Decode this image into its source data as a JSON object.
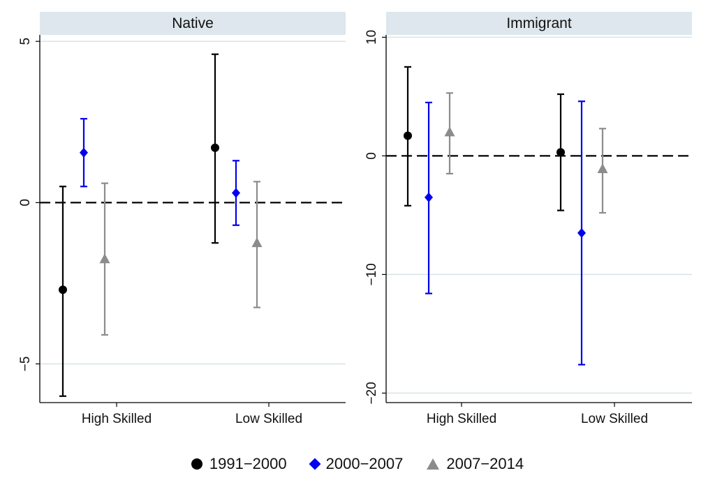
{
  "chart_data": {
    "type": "scatter",
    "subtype": "coefficient-plot-with-error-bars",
    "panels": [
      {
        "title": "Native",
        "categories": [
          "High Skilled",
          "Low Skilled"
        ],
        "ylim": [
          -6.2,
          5.2
        ],
        "yticks": [
          5,
          0,
          -5
        ],
        "ytick_labels": [
          "5",
          "0",
          "−5"
        ],
        "reference_line": 0,
        "series": [
          {
            "name": "1991−2000",
            "values": [
              -2.7,
              1.7
            ],
            "ci_low": [
              -6.0,
              -1.25
            ],
            "ci_high": [
              0.5,
              4.6
            ]
          },
          {
            "name": "2000−2007",
            "values": [
              1.55,
              0.3
            ],
            "ci_low": [
              0.5,
              -0.7
            ],
            "ci_high": [
              2.6,
              1.3
            ]
          },
          {
            "name": "2007−2014",
            "values": [
              -1.75,
              -1.25
            ],
            "ci_low": [
              -4.1,
              -3.25
            ],
            "ci_high": [
              0.6,
              0.65
            ]
          }
        ]
      },
      {
        "title": "Immigrant",
        "categories": [
          "High Skilled",
          "Low Skilled"
        ],
        "ylim": [
          -20.8,
          10.2
        ],
        "yticks": [
          10,
          0,
          -10,
          -20
        ],
        "ytick_labels": [
          "10",
          "0",
          "−10",
          "−20"
        ],
        "reference_line": 0,
        "series": [
          {
            "name": "1991−2000",
            "values": [
              1.7,
              0.3
            ],
            "ci_low": [
              -4.2,
              -4.6
            ],
            "ci_high": [
              7.5,
              5.2
            ]
          },
          {
            "name": "2000−2007",
            "values": [
              -3.5,
              -6.5
            ],
            "ci_low": [
              -11.6,
              -17.6
            ],
            "ci_high": [
              4.5,
              4.6
            ]
          },
          {
            "name": "2007−2014",
            "values": [
              2.0,
              -1.1
            ],
            "ci_low": [
              -1.5,
              -4.8
            ],
            "ci_high": [
              5.3,
              2.3
            ]
          }
        ]
      }
    ],
    "legend": {
      "position": "bottom",
      "items": [
        {
          "label": "1991−2000",
          "marker": "circle",
          "color": "#000000"
        },
        {
          "label": "2000−2007",
          "marker": "diamond",
          "color": "#0000ee"
        },
        {
          "label": "2007−2014",
          "marker": "triangle",
          "color": "#8c8c8c"
        }
      ]
    },
    "grid": true
  },
  "colors": {
    "series": [
      "#000000",
      "#0000ee",
      "#8c8c8c"
    ],
    "panel_header": "#dde7ed",
    "gridline": "#d8e4e8"
  }
}
